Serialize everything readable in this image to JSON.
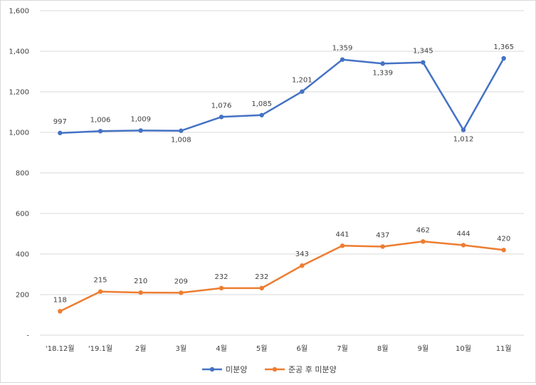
{
  "chart_data": {
    "type": "line",
    "title": "",
    "xlabel": "",
    "ylabel": "",
    "ylim": [
      0,
      1600
    ],
    "grid": true,
    "legend_position": "bottom",
    "y_ticks": [
      {
        "value": 0,
        "label": "-"
      },
      {
        "value": 200,
        "label": "200"
      },
      {
        "value": 400,
        "label": "400"
      },
      {
        "value": 600,
        "label": "600"
      },
      {
        "value": 800,
        "label": "800"
      },
      {
        "value": 1000,
        "label": "1,000"
      },
      {
        "value": 1200,
        "label": "1,200"
      },
      {
        "value": 1400,
        "label": "1,400"
      },
      {
        "value": 1600,
        "label": "1,600"
      }
    ],
    "categories": [
      "'18.12월",
      "'19.1월",
      "2월",
      "3월",
      "4월",
      "5월",
      "6월",
      "7월",
      "8월",
      "9월",
      "10월",
      "11월"
    ],
    "series": [
      {
        "name": "미분양",
        "color": "#4472c4",
        "values": [
          997,
          1006,
          1009,
          1008,
          1076,
          1085,
          1201,
          1359,
          1339,
          1345,
          1012,
          1365
        ],
        "labels": [
          "997",
          "1,006",
          "1,009",
          "1,008",
          "1,076",
          "1,085",
          "1,201",
          "1,359",
          "1,339",
          "1,345",
          "1,012",
          "1,365"
        ]
      },
      {
        "name": "준공 후 미분양",
        "color": "#ed7d31",
        "values": [
          118,
          215,
          210,
          209,
          232,
          232,
          343,
          441,
          437,
          462,
          444,
          420
        ],
        "labels": [
          "118",
          "215",
          "210",
          "209",
          "232",
          "232",
          "343",
          "441",
          "437",
          "462",
          "444",
          "420"
        ]
      }
    ]
  }
}
